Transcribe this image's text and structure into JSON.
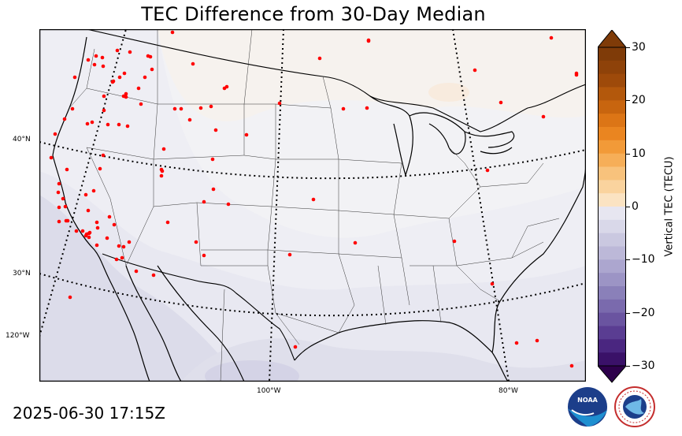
{
  "title": "TEC Difference from 30-Day Median",
  "timestamp": "2025-06-30 17:15Z",
  "colorbar": {
    "label": "Vertical TEC (TECU)",
    "ticks": [
      "30",
      "20",
      "10",
      "0",
      "−10",
      "−20",
      "−30"
    ],
    "range": [
      -30,
      30
    ],
    "colors": {
      "max": "#7f3b08",
      "positive_mid": "#f4a040",
      "neutral": "#f7f7f7",
      "negative_mid": "#8c7fb8",
      "min": "#2d004b"
    }
  },
  "map": {
    "latitude_labels": [
      "40°N",
      "30°N"
    ],
    "longitude_labels": [
      "120°W",
      "100°W",
      "80°W"
    ],
    "station_marker_color": "#ff0000",
    "station_count": 110
  },
  "logos": [
    {
      "name": "noaa-logo",
      "text": "NOAA"
    },
    {
      "name": "national-weather-service-logo",
      "text": "NATIONAL WEATHER SERVICE"
    }
  ]
}
